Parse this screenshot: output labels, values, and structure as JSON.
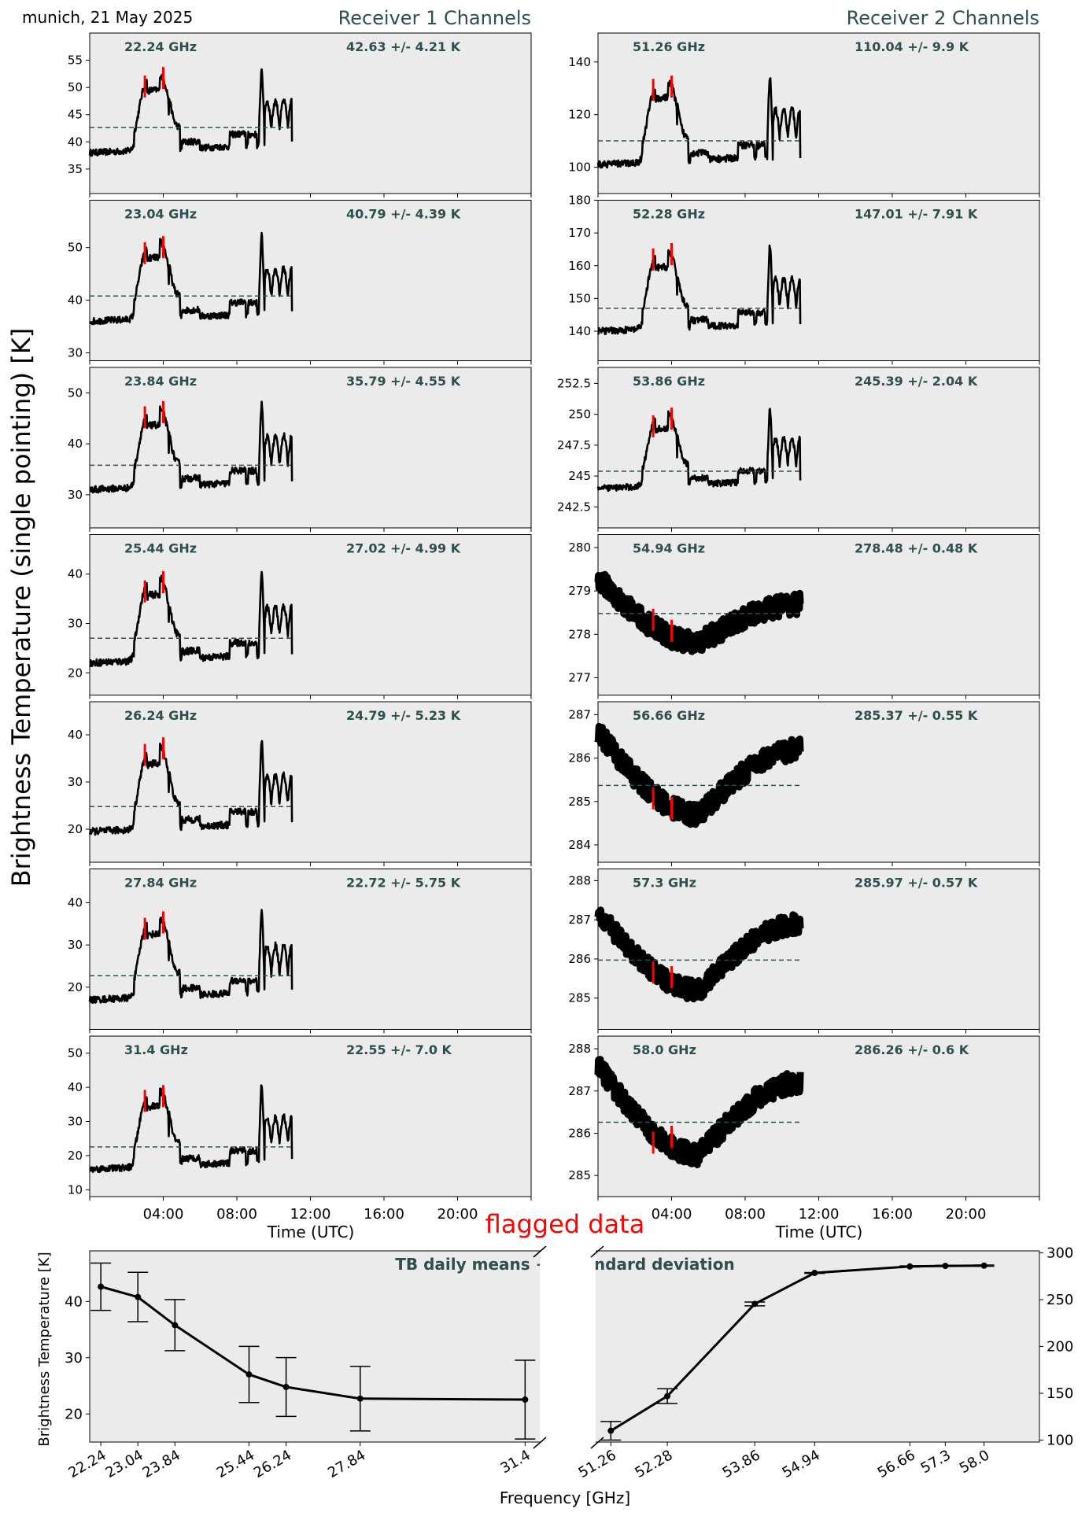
{
  "header": {
    "location_date": "munich, 21 May 2025",
    "receiver1_title": "Receiver 1 Channels",
    "receiver2_title": "Receiver 2 Channels",
    "y_label": "Brightness Temperature (single pointing) [K]",
    "x_label": "Time (UTC)",
    "flagged_label": "flagged data",
    "time_ticks": [
      "04:00",
      "08:00",
      "12:00",
      "16:00",
      "20:00"
    ]
  },
  "colors": {
    "panel_bg": "#ebebeb",
    "text_accent": "#2f4f4f",
    "series": "#000000",
    "flagged": "#ff0000",
    "mean_line": "#2f4f4f"
  },
  "chart_data": [
    {
      "type": "line",
      "receiver": 1,
      "channels": [
        {
          "freq_label": "22.24 GHz",
          "mean_label": "42.63 +/- 4.21 K",
          "mean": 42.63,
          "std": 4.21,
          "base": 38,
          "ylim": [
            30.5,
            60
          ],
          "yticks": [
            35,
            40,
            45,
            50,
            55
          ],
          "amp": 1.0
        },
        {
          "freq_label": "23.04 GHz",
          "mean_label": "40.79 +/- 4.39 K",
          "mean": 40.79,
          "std": 4.39,
          "base": 36,
          "ylim": [
            28.5,
            59
          ],
          "yticks": [
            30,
            40,
            50
          ],
          "amp": 1.05
        },
        {
          "freq_label": "23.84 GHz",
          "mean_label": "35.79 +/- 4.55 K",
          "mean": 35.79,
          "std": 4.55,
          "base": 31,
          "ylim": [
            23.5,
            55
          ],
          "yticks": [
            30,
            40,
            50
          ],
          "amp": 1.1
        },
        {
          "freq_label": "25.44 GHz",
          "mean_label": "27.02 +/- 4.99 K",
          "mean": 27.02,
          "std": 4.99,
          "base": 22,
          "ylim": [
            15.5,
            48
          ],
          "yticks": [
            20,
            30,
            40
          ],
          "amp": 1.2
        },
        {
          "freq_label": "26.24 GHz",
          "mean_label": "24.79 +/- 5.23 K",
          "mean": 24.79,
          "std": 5.23,
          "base": 19.5,
          "ylim": [
            13,
            47
          ],
          "yticks": [
            20,
            30,
            40
          ],
          "amp": 1.25
        },
        {
          "freq_label": "27.84 GHz",
          "mean_label": "22.72 +/- 5.75 K",
          "mean": 22.72,
          "std": 5.75,
          "base": 17,
          "ylim": [
            10,
            48
          ],
          "yticks": [
            20,
            30,
            40
          ],
          "amp": 1.35
        },
        {
          "freq_label": "31.4 GHz",
          "mean_label": "22.55 +/- 7.0 K",
          "mean": 22.55,
          "std": 7.0,
          "base": 16,
          "ylim": [
            8,
            55
          ],
          "yticks": [
            10,
            20,
            30,
            40,
            50
          ],
          "amp": 1.6
        }
      ]
    },
    {
      "type": "line",
      "receiver": 2,
      "channels": [
        {
          "freq_label": "51.26 GHz",
          "mean_label": "110.04 +/- 9.9 K",
          "mean": 110.04,
          "std": 9.9,
          "base": 101,
          "ylim": [
            90,
            151
          ],
          "yticks": [
            100,
            120,
            140
          ],
          "mode": "peaks",
          "amp": 2.2
        },
        {
          "freq_label": "52.28 GHz",
          "mean_label": "147.01 +/- 7.91 K",
          "mean": 147.01,
          "std": 7.91,
          "base": 140,
          "ylim": [
            131,
            180
          ],
          "yticks": [
            140,
            150,
            160,
            170,
            180
          ],
          "mode": "peaks",
          "amp": 1.7
        },
        {
          "freq_label": "53.86 GHz",
          "mean_label": "245.39 +/- 2.04 K",
          "mean": 245.39,
          "std": 2.04,
          "base": 244,
          "ylim": [
            240.8,
            253.8
          ],
          "yticks": [
            242.5,
            245.0,
            247.5,
            250.0,
            252.5
          ],
          "mode": "peaks",
          "amp": 0.42
        },
        {
          "freq_label": "54.94 GHz",
          "mean_label": "278.48 +/- 0.48 K",
          "mean": 278.48,
          "std": 0.48,
          "ylim": [
            276.6,
            280.3
          ],
          "yticks": [
            277,
            278,
            279,
            280
          ],
          "mode": "dip",
          "start": 279.3,
          "low": 277.8,
          "end": 278.7
        },
        {
          "freq_label": "56.66 GHz",
          "mean_label": "285.37 +/- 0.55 K",
          "mean": 285.37,
          "std": 0.55,
          "ylim": [
            283.6,
            287.3
          ],
          "yticks": [
            284,
            285,
            286,
            287
          ],
          "mode": "dip",
          "start": 286.6,
          "low": 284.7,
          "end": 286.2
        },
        {
          "freq_label": "57.3 GHz",
          "mean_label": "285.97 +/- 0.57 K",
          "mean": 285.97,
          "std": 0.57,
          "ylim": [
            284.2,
            288.3
          ],
          "yticks": [
            285,
            286,
            287,
            288
          ],
          "mode": "dip",
          "start": 287.2,
          "low": 285.2,
          "end": 286.9
        },
        {
          "freq_label": "58.0 GHz",
          "mean_label": "286.26 +/- 0.6 K",
          "mean": 286.26,
          "std": 0.6,
          "ylim": [
            284.5,
            288.3
          ],
          "yticks": [
            285,
            286,
            287,
            288
          ],
          "mode": "dip",
          "start": 287.6,
          "low": 285.5,
          "end": 287.2
        }
      ]
    },
    {
      "type": "line",
      "title": "TB daily means +/- standard deviation",
      "xlabel": "Frequency [GHz]",
      "ylabel": "Brightness Temperature [K]",
      "left": {
        "x": [
          22.24,
          23.04,
          23.84,
          25.44,
          26.24,
          27.84,
          31.4
        ],
        "mean": [
          42.63,
          40.79,
          35.79,
          27.02,
          24.79,
          22.72,
          22.55
        ],
        "std": [
          4.21,
          4.39,
          4.55,
          4.99,
          5.23,
          5.75,
          7.0
        ],
        "xlim": [
          22.0,
          31.7
        ],
        "ylim": [
          15,
          49
        ],
        "yticks": [
          20,
          30,
          40
        ],
        "xtick_labels": [
          "22.24",
          "23.04",
          "23.84",
          "25.44",
          "26.24",
          "27.84",
          "31.4"
        ]
      },
      "right": {
        "x": [
          51.26,
          52.28,
          53.86,
          54.94,
          56.66,
          57.3,
          58.0
        ],
        "mean": [
          110.04,
          147.01,
          245.39,
          278.48,
          285.37,
          285.97,
          286.26
        ],
        "std": [
          9.9,
          7.91,
          2.04,
          0.48,
          0.55,
          0.57,
          0.6
        ],
        "xlim": [
          51.0,
          59.0
        ],
        "ylim": [
          98,
          302
        ],
        "yticks": [
          100,
          150,
          200,
          250,
          300
        ],
        "xtick_labels": [
          "51.26",
          "52.28",
          "53.86",
          "54.94",
          "56.66",
          "57.3",
          "58.0"
        ]
      }
    }
  ]
}
